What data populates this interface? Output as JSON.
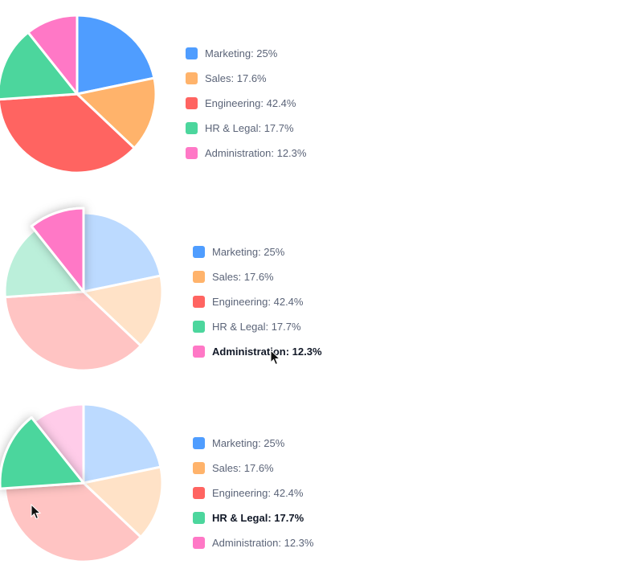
{
  "chart_data": [
    {
      "type": "pie",
      "hovered": null,
      "slices": [
        {
          "label": "Marketing",
          "value": 25,
          "legend_text": "Marketing: 25%",
          "color": "#4f9dff"
        },
        {
          "label": "Sales",
          "value": 17.6,
          "legend_text": "Sales: 17.6%",
          "color": "#ffb36b"
        },
        {
          "label": "Engineering",
          "value": 42.4,
          "legend_text": "Engineering: 42.4%",
          "color": "#ff6461"
        },
        {
          "label": "HR & Legal",
          "value": 17.7,
          "legend_text": "HR & Legal: 17.7%",
          "color": "#4cd69d"
        },
        {
          "label": "Administration",
          "value": 12.3,
          "legend_text": "Administration: 12.3%",
          "color": "#ff78c6"
        }
      ]
    },
    {
      "type": "pie",
      "hovered": "Administration",
      "slices": [
        {
          "label": "Marketing",
          "value": 25,
          "legend_text": "Marketing: 25%",
          "color": "#4f9dff"
        },
        {
          "label": "Sales",
          "value": 17.6,
          "legend_text": "Sales: 17.6%",
          "color": "#ffb36b"
        },
        {
          "label": "Engineering",
          "value": 42.4,
          "legend_text": "Engineering: 42.4%",
          "color": "#ff6461"
        },
        {
          "label": "HR & Legal",
          "value": 17.7,
          "legend_text": "HR & Legal: 17.7%",
          "color": "#4cd69d"
        },
        {
          "label": "Administration",
          "value": 12.3,
          "legend_text": "Administration: 12.3%",
          "color": "#ff78c6"
        }
      ]
    },
    {
      "type": "pie",
      "hovered": "HR & Legal",
      "slices": [
        {
          "label": "Marketing",
          "value": 25,
          "legend_text": "Marketing: 25%",
          "color": "#4f9dff"
        },
        {
          "label": "Sales",
          "value": 17.6,
          "legend_text": "Sales: 17.6%",
          "color": "#ffb36b"
        },
        {
          "label": "Engineering",
          "value": 42.4,
          "legend_text": "Engineering: 42.4%",
          "color": "#ff6461"
        },
        {
          "label": "HR & Legal",
          "value": 17.7,
          "legend_text": "HR & Legal: 17.7%",
          "color": "#4cd69d"
        },
        {
          "label": "Administration",
          "value": 12.3,
          "legend_text": "Administration: 12.3%",
          "color": "#ff78c6"
        }
      ]
    }
  ],
  "icons": {
    "cursor": "mouse-pointer-icon"
  }
}
